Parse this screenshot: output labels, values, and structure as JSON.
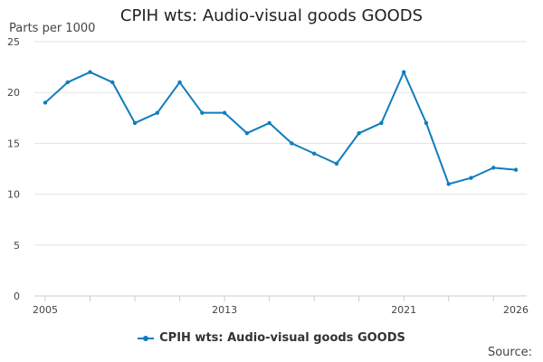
{
  "chart_data": {
    "type": "line",
    "title": "CPIH wts: Audio-visual goods GOODS",
    "ylabel": "Parts per 1000",
    "xlabel": "",
    "source_label": "Source:",
    "x": [
      2005,
      2006,
      2007,
      2008,
      2009,
      2010,
      2011,
      2012,
      2013,
      2014,
      2015,
      2016,
      2017,
      2018,
      2019,
      2020,
      2021,
      2022,
      2023,
      2024,
      2025,
      2026
    ],
    "xticks": [
      "2005",
      "2013",
      "2021",
      "2026"
    ],
    "yticks": [
      "0",
      "5",
      "10",
      "15",
      "20",
      "25"
    ],
    "ylim": [
      0,
      25
    ],
    "grid": true,
    "legend_position": "bottom",
    "series": [
      {
        "name": "CPIH wts: Audio-visual goods GOODS",
        "color": "#0f7dbd",
        "values": [
          19,
          21,
          22,
          21,
          17,
          18,
          21,
          18,
          18,
          16,
          17,
          15,
          14,
          13,
          16,
          17,
          22,
          17,
          11,
          11.6,
          12.6,
          12.4
        ]
      }
    ]
  }
}
